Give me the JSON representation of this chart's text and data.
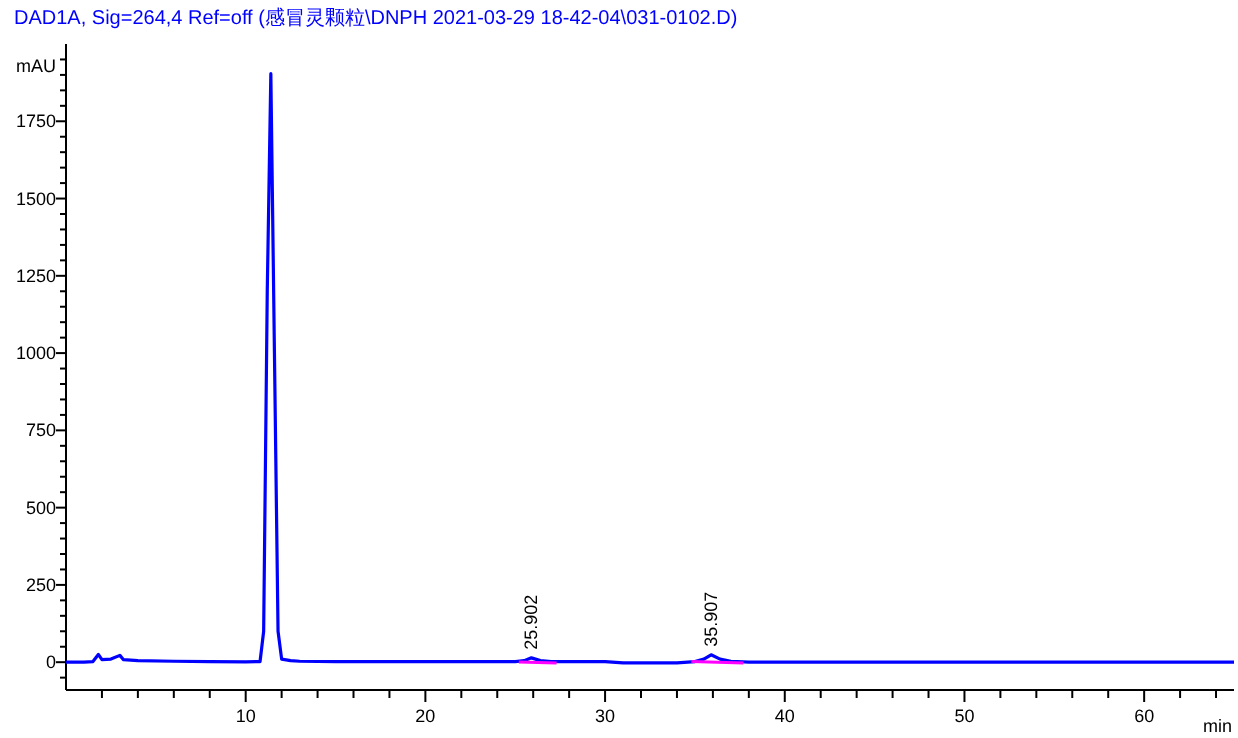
{
  "chart_data": {
    "type": "line",
    "title": "DAD1A, Sig=264,4 Ref=off (感冒灵颗粒\\DNPH 2021-03-29 18-42-04\\031-0102.D)",
    "xlabel": "min",
    "ylabel": "mAU",
    "series": [
      {
        "color": "#0000ff",
        "x": [
          0,
          1,
          1.5,
          1.8,
          2.0,
          2.5,
          3.0,
          3.2,
          4,
          6,
          8,
          10,
          10.8,
          11.0,
          11.2,
          11.4,
          11.6,
          11.8,
          12.0,
          12.5,
          13,
          15,
          20,
          25,
          25.5,
          25.9,
          26.4,
          27,
          30,
          31,
          34,
          35,
          35.5,
          35.9,
          36.4,
          37,
          38,
          45,
          55,
          65
        ],
        "values": [
          0,
          0,
          2,
          25,
          8,
          10,
          22,
          8,
          5,
          3,
          2,
          1,
          2,
          100,
          1200,
          1904,
          1000,
          100,
          10,
          5,
          3,
          2,
          2,
          2,
          5,
          14,
          5,
          2,
          2,
          -2,
          -2,
          2,
          10,
          24,
          10,
          3,
          0,
          0,
          0,
          0
        ]
      },
      {
        "color": "#ff00ff",
        "x": [
          25.2,
          27.3
        ],
        "values": [
          1,
          -3
        ]
      },
      {
        "color": "#ff00ff",
        "x": [
          34.8,
          37.7
        ],
        "values": [
          2,
          -3
        ]
      }
    ],
    "annotations": [
      {
        "text": "25.902",
        "x": 25.902,
        "y": 14
      },
      {
        "text": "35.907",
        "x": 35.907,
        "y": 24
      }
    ],
    "xlim": [
      0,
      65
    ],
    "ylim": [
      -90,
      2000
    ],
    "xticks": [
      {
        "value": 2,
        "label": null
      },
      {
        "value": 4,
        "label": null
      },
      {
        "value": 6,
        "label": null
      },
      {
        "value": 8,
        "label": null
      },
      10,
      {
        "value": 12,
        "label": null
      },
      {
        "value": 14,
        "label": null
      },
      {
        "value": 16,
        "label": null
      },
      {
        "value": 18,
        "label": null
      },
      20,
      {
        "value": 22,
        "label": null
      },
      {
        "value": 24,
        "label": null
      },
      {
        "value": 26,
        "label": null
      },
      {
        "value": 28,
        "label": null
      },
      30,
      {
        "value": 32,
        "label": null
      },
      {
        "value": 34,
        "label": null
      },
      {
        "value": 36,
        "label": null
      },
      {
        "value": 38,
        "label": null
      },
      40,
      {
        "value": 42,
        "label": null
      },
      {
        "value": 44,
        "label": null
      },
      {
        "value": 46,
        "label": null
      },
      {
        "value": 48,
        "label": null
      },
      50,
      {
        "value": 52,
        "label": null
      },
      {
        "value": 54,
        "label": null
      },
      {
        "value": 56,
        "label": null
      },
      {
        "value": 58,
        "label": null
      },
      60,
      {
        "value": 62,
        "label": null
      },
      {
        "value": 64,
        "label": null
      }
    ],
    "yticks": [
      {
        "value": -50,
        "label": null
      },
      0,
      {
        "value": 50,
        "label": null
      },
      {
        "value": 100,
        "label": null
      },
      {
        "value": 150,
        "label": null
      },
      {
        "value": 200,
        "label": null
      },
      250,
      {
        "value": 300,
        "label": null
      },
      {
        "value": 350,
        "label": null
      },
      {
        "value": 400,
        "label": null
      },
      {
        "value": 450,
        "label": null
      },
      500,
      {
        "value": 550,
        "label": null
      },
      {
        "value": 600,
        "label": null
      },
      {
        "value": 650,
        "label": null
      },
      {
        "value": 700,
        "label": null
      },
      750,
      {
        "value": 800,
        "label": null
      },
      {
        "value": 850,
        "label": null
      },
      {
        "value": 900,
        "label": null
      },
      {
        "value": 950,
        "label": null
      },
      1000,
      {
        "value": 1050,
        "label": null
      },
      {
        "value": 1100,
        "label": null
      },
      {
        "value": 1150,
        "label": null
      },
      {
        "value": 1200,
        "label": null
      },
      1250,
      {
        "value": 1300,
        "label": null
      },
      {
        "value": 1350,
        "label": null
      },
      {
        "value": 1400,
        "label": null
      },
      {
        "value": 1450,
        "label": null
      },
      1500,
      {
        "value": 1550,
        "label": null
      },
      {
        "value": 1600,
        "label": null
      },
      {
        "value": 1650,
        "label": null
      },
      {
        "value": 1700,
        "label": null
      },
      1750,
      {
        "value": 1800,
        "label": null
      },
      {
        "value": 1850,
        "label": null
      },
      {
        "value": 1900,
        "label": null
      },
      {
        "value": 1950,
        "label": null
      }
    ],
    "line_style": "solid",
    "marker": "none"
  }
}
